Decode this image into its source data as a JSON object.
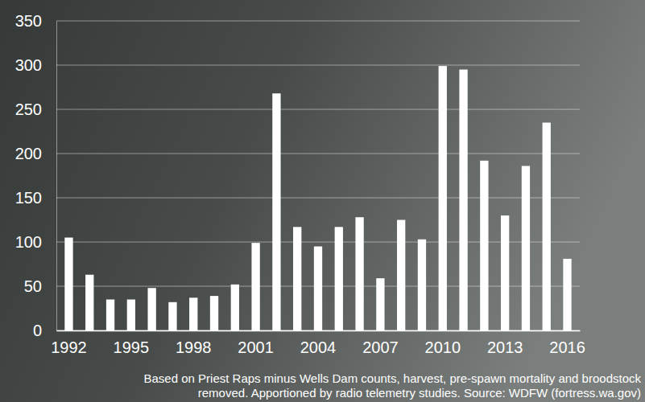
{
  "chart_data": {
    "type": "bar",
    "categories": [
      "1992",
      null,
      null,
      "1995",
      null,
      null,
      "1998",
      null,
      null,
      "2001",
      null,
      null,
      "2004",
      null,
      null,
      "2007",
      null,
      null,
      "2010",
      null,
      null,
      "2013",
      null,
      null,
      "2016"
    ],
    "values": [
      105,
      63,
      35,
      35,
      48,
      32,
      37,
      39,
      52,
      99,
      268,
      117,
      95,
      117,
      128,
      59,
      125,
      103,
      299,
      295,
      192,
      130,
      186,
      235,
      81
    ],
    "color": "#ffffff",
    "ylim": [
      0,
      350
    ],
    "yticks": [
      0,
      50,
      100,
      150,
      200,
      250,
      300,
      350
    ],
    "grid": true,
    "annotations": [
      "Based on Priest Raps minus Wells Dam counts, harvest, pre-spawn mortality and broodstock",
      "removed. Apportioned by radio telemetry studies. Source: WDFW (fortress.wa.gov)"
    ]
  }
}
